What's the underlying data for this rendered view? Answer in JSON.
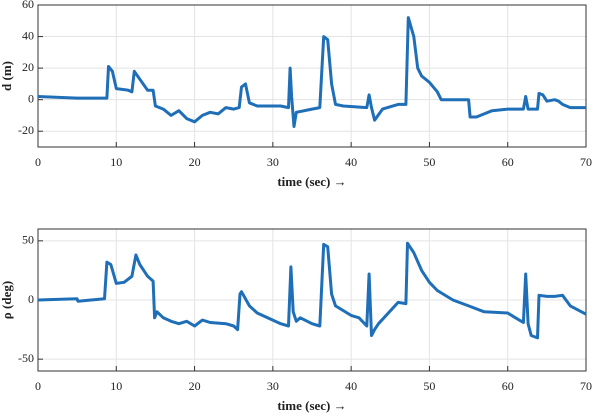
{
  "chart_data": [
    {
      "type": "line",
      "xlabel": "time (sec) →",
      "ylabel": "d (m)",
      "color": "#1f6fb8",
      "grid": true,
      "xlim": [
        0,
        70
      ],
      "xticks": [
        0,
        10,
        20,
        30,
        40,
        50,
        60,
        70
      ],
      "ylim": [
        -30,
        60
      ],
      "yticks": [
        -20,
        0,
        20,
        40,
        60
      ],
      "x": [
        0,
        5,
        6,
        8.8,
        9,
        9.5,
        10,
        11.5,
        12,
        12.3,
        13,
        14,
        14.7,
        15,
        16,
        17,
        18,
        19,
        20,
        21,
        22,
        23,
        24,
        25,
        25.7,
        26,
        26.5,
        27,
        28,
        31,
        32,
        32.2,
        32.4,
        32.7,
        33,
        35,
        36,
        36.5,
        37,
        37.5,
        38,
        39,
        42,
        42.3,
        42.6,
        43,
        44,
        46,
        47,
        47.3,
        48,
        48.5,
        49,
        50,
        51,
        51.5,
        55,
        55.2,
        56,
        57,
        58,
        60,
        62,
        62.3,
        62.6,
        63.8,
        64,
        64.5,
        65,
        66,
        66.5,
        67,
        68,
        70
      ],
      "values": [
        2,
        1,
        1,
        1,
        21,
        18,
        7,
        6,
        5,
        18,
        13,
        6,
        6,
        -4,
        -6,
        -10,
        -7,
        -12,
        -14,
        -10,
        -8,
        -9,
        -5,
        -6,
        -5,
        8,
        10,
        -2,
        -4,
        -4,
        -5,
        20,
        2,
        -17,
        -8,
        -6,
        -5,
        40,
        38,
        10,
        -3,
        -4,
        -5,
        3,
        -5,
        -13,
        -6,
        -3,
        -3,
        52,
        40,
        20,
        15,
        11,
        5,
        0,
        0,
        -11,
        -11,
        -9,
        -7,
        -6,
        -6,
        2,
        -6,
        -6,
        4,
        3,
        -1,
        0,
        -1,
        -3,
        -5,
        -5
      ]
    },
    {
      "type": "line",
      "xlabel": "time (sec) →",
      "ylabel": "ρ (deg)",
      "color": "#1f6fb8",
      "grid": true,
      "xlim": [
        0,
        70
      ],
      "xticks": [
        0,
        10,
        20,
        30,
        40,
        50,
        60,
        70
      ],
      "ylim": [
        -60,
        60
      ],
      "yticks": [
        -50,
        0,
        50
      ],
      "x": [
        0,
        5,
        5.1,
        8.5,
        8.8,
        9.3,
        10,
        11,
        12,
        12.5,
        13,
        14,
        14.7,
        14.9,
        15.2,
        16,
        17,
        18,
        19,
        20,
        21,
        22,
        24,
        25,
        25.5,
        25.8,
        26,
        27,
        28,
        31,
        32,
        32.3,
        32.6,
        33,
        33.5,
        35,
        36,
        36.5,
        37,
        37.5,
        38,
        40,
        41,
        42,
        42.3,
        42.6,
        43,
        43.5,
        46,
        47,
        47.2,
        48,
        49,
        50,
        51,
        53,
        55,
        57,
        60,
        61,
        62,
        62.3,
        62.6,
        63,
        63.8,
        64,
        65,
        66,
        67,
        68,
        70
      ],
      "values": [
        0,
        1,
        -1,
        1,
        32,
        30,
        14,
        15,
        20,
        38,
        30,
        20,
        16,
        -15,
        -10,
        -15,
        -18,
        -20,
        -18,
        -22,
        -17,
        -19,
        -20,
        -22,
        -25,
        5,
        7,
        -5,
        -11,
        -20,
        -22,
        28,
        -10,
        -18,
        -15,
        -20,
        -22,
        47,
        45,
        5,
        -5,
        -13,
        -15,
        -22,
        22,
        -30,
        -25,
        -20,
        -2,
        -3,
        48,
        40,
        25,
        15,
        8,
        0,
        -5,
        -10,
        -11,
        -15,
        -19,
        22,
        -20,
        -30,
        -32,
        4,
        3,
        3,
        4,
        -5,
        -12
      ]
    }
  ]
}
